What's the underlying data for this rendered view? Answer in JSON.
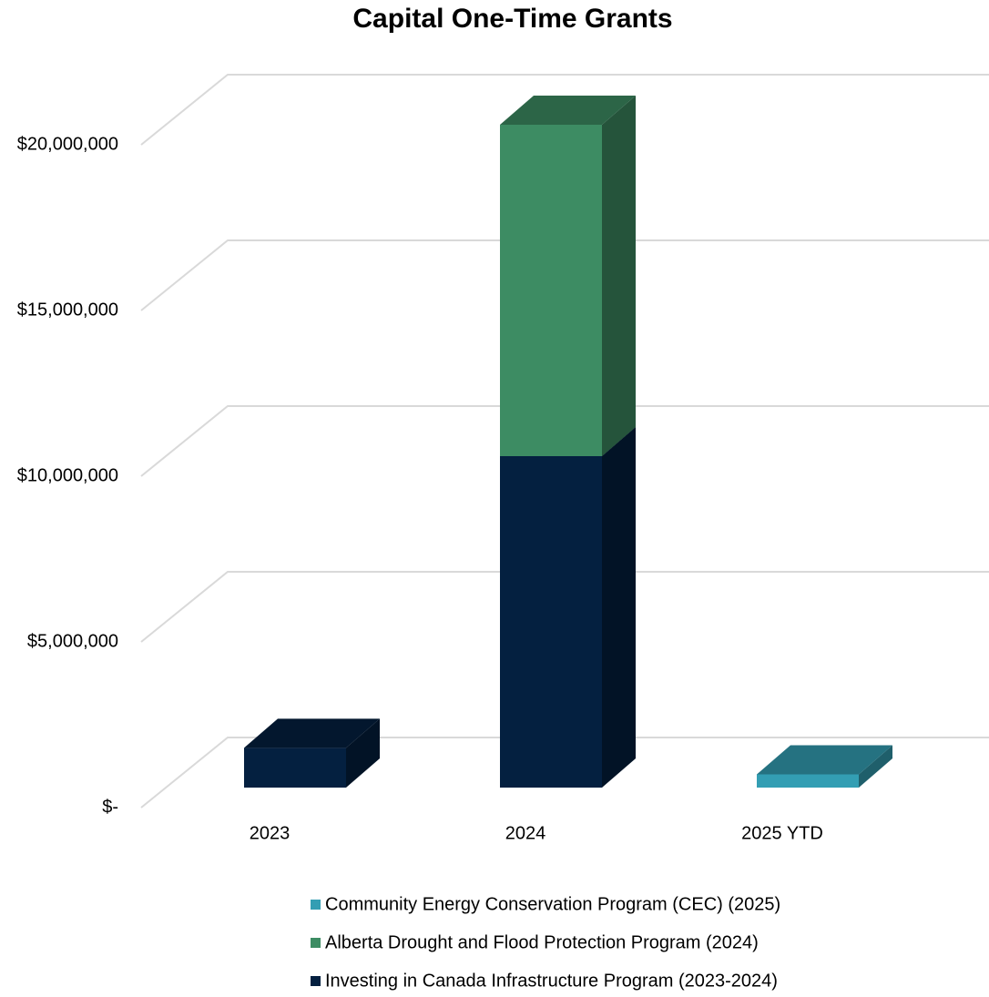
{
  "chart_data": {
    "type": "bar3d_stacked",
    "title": "Capital One-Time Grants",
    "categories": [
      "2023",
      "2024",
      "2025 YTD"
    ],
    "series": [
      {
        "name": "Investing in Canada Infrastructure Program (2023-2024)",
        "color": "#042040",
        "values": [
          1200000,
          10000000,
          null
        ]
      },
      {
        "name": "Alberta Drought and Flood Protection Program (2024)",
        "color": "#3d8c63",
        "values": [
          null,
          10000000,
          null
        ]
      },
      {
        "name": "Community Energy Conservation Program (CEC) (2025)",
        "color": "#339eb3",
        "values": [
          null,
          null,
          400000
        ]
      }
    ],
    "ylim": [
      0,
      20000000
    ],
    "yticks": [
      {
        "value": 0,
        "label": "$-"
      },
      {
        "value": 5000000,
        "label": "$5,000,000"
      },
      {
        "value": 10000000,
        "label": "$10,000,000"
      },
      {
        "value": 15000000,
        "label": "$15,000,000"
      },
      {
        "value": 20000000,
        "label": "$20,000,000"
      }
    ],
    "grid": true
  }
}
